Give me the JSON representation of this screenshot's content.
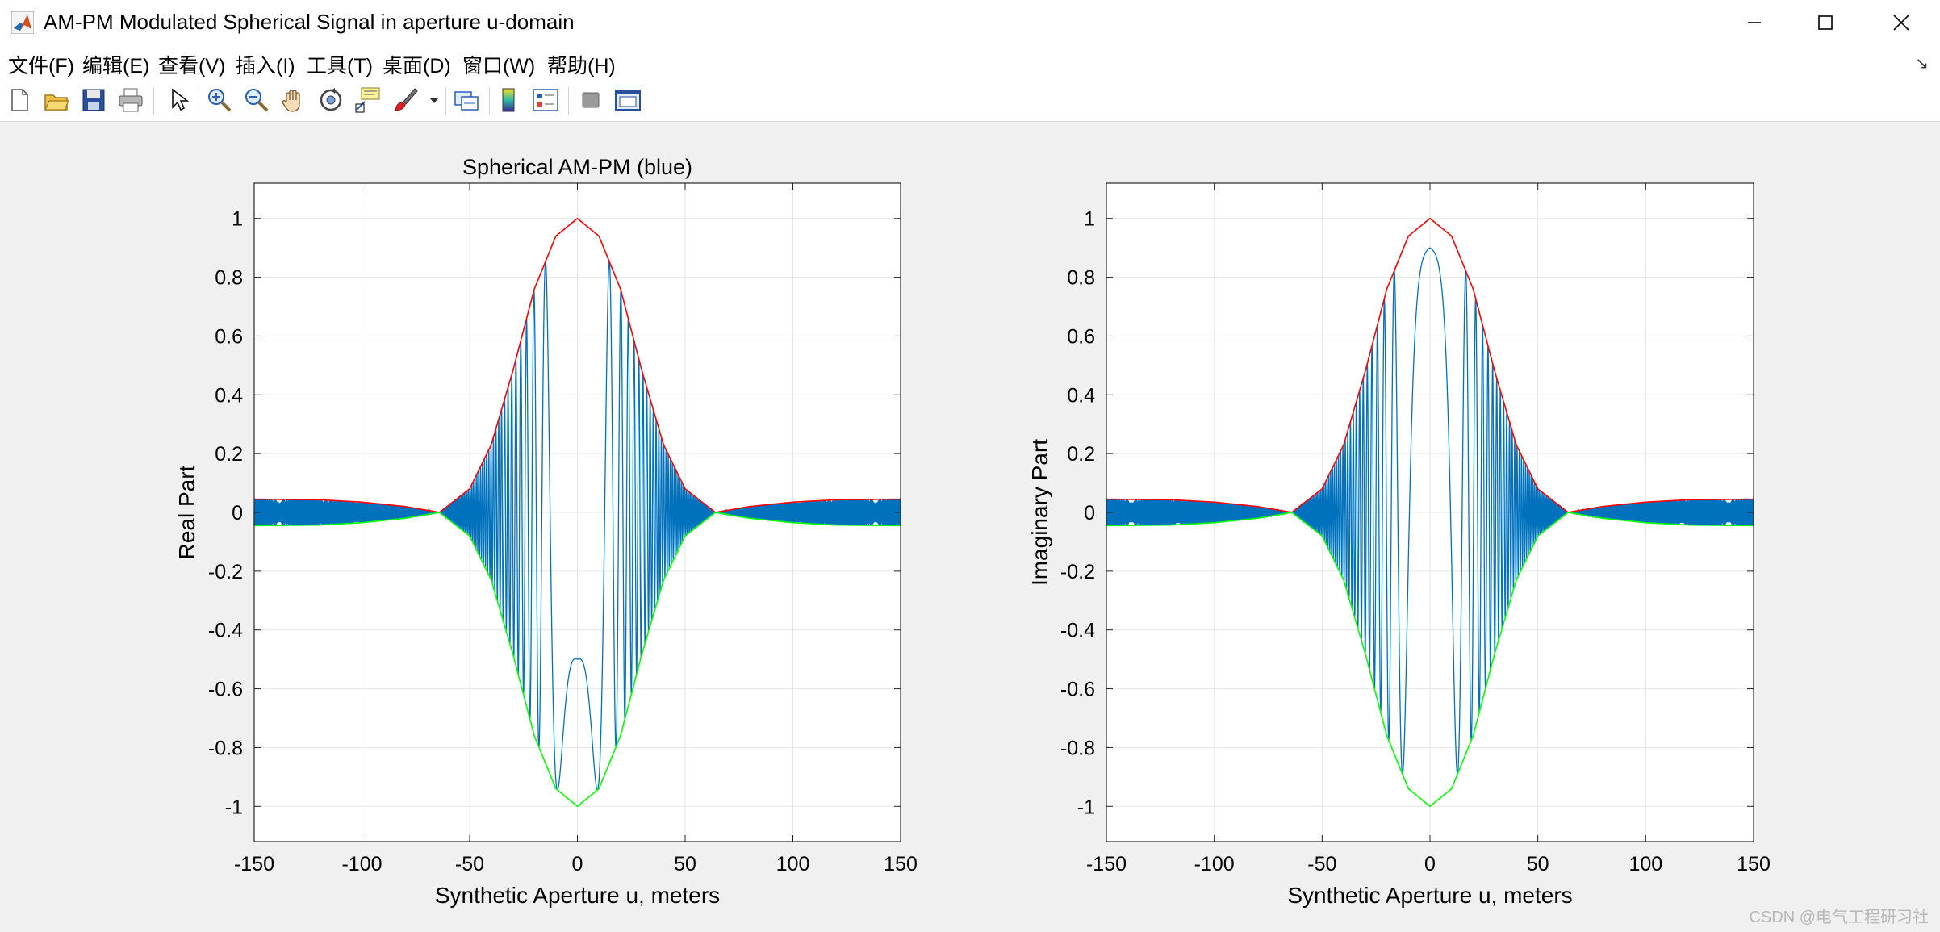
{
  "window": {
    "title": "AM-PM Modulated Spherical Signal in aperture u-domain",
    "app_icon": "matlab-icon",
    "controls": [
      "minimize-icon",
      "maximize-icon",
      "close-icon"
    ]
  },
  "menu": {
    "items": [
      "文件(F)",
      "编辑(E)",
      "查看(V)",
      "插入(I)",
      "工具(T)",
      "桌面(D)",
      "窗口(W)",
      "帮助(H)"
    ],
    "dock_arrow": "↘"
  },
  "toolbar": {
    "icons": [
      "new-figure-icon",
      "open-file-icon",
      "save-icon",
      "print-icon",
      "pointer-icon",
      "zoom-in-icon",
      "zoom-out-icon",
      "pan-hand-icon",
      "rotate-3d-icon",
      "data-cursor-icon",
      "brush-icon",
      "brush-dropdown-icon",
      "link-plot-icon",
      "colorbar-icon",
      "legend-icon",
      "hide-plot-tools-icon",
      "show-plot-tools-icon"
    ]
  },
  "colors": {
    "signal": "#0072bd",
    "upper_envelope": "#ff0000",
    "lower_envelope": "#00ff00",
    "grid": "#e6e6e6"
  },
  "watermark": "CSDN @电气工程研习社",
  "chart_data": [
    {
      "type": "line",
      "title": "Spherical AM-PM (blue)",
      "xlabel": "Synthetic Aperture u, meters",
      "ylabel": "Real Part",
      "xlim": [
        -150,
        150
      ],
      "ylim": [
        -1.12,
        1.12
      ],
      "xticks": [
        -150,
        -100,
        -50,
        0,
        50,
        100,
        150
      ],
      "yticks": [
        -1,
        -0.8,
        -0.6,
        -0.4,
        -0.2,
        0,
        0.2,
        0.4,
        0.6,
        0.8,
        1
      ],
      "grid": true,
      "series": [
        {
          "role": "signal",
          "color": "#0072bd",
          "value_at_zero": -0.5,
          "envelope_points": {
            "x": [
              -150,
              -120,
              -100,
              -80,
              -64,
              -50,
              -40,
              -30,
              -20,
              -10,
              0,
              10,
              20,
              30,
              40,
              50,
              64,
              80,
              100,
              120,
              150
            ],
            "y": [
              0.045,
              0.043,
              0.035,
              0.02,
              0,
              0.08,
              0.23,
              0.48,
              0.76,
              0.94,
              1,
              0.94,
              0.76,
              0.48,
              0.23,
              0.08,
              0,
              0.02,
              0.035,
              0.043,
              0.045
            ]
          }
        },
        {
          "role": "upper envelope",
          "color": "#ff0000",
          "x": [
            -150,
            -120,
            -100,
            -80,
            -64,
            -50,
            -40,
            -30,
            -20,
            -10,
            0,
            10,
            20,
            30,
            40,
            50,
            64,
            80,
            100,
            120,
            150
          ],
          "y": [
            0.045,
            0.043,
            0.035,
            0.02,
            0,
            0.08,
            0.23,
            0.48,
            0.76,
            0.94,
            1,
            0.94,
            0.76,
            0.48,
            0.23,
            0.08,
            0,
            0.02,
            0.035,
            0.043,
            0.045
          ]
        },
        {
          "role": "lower envelope",
          "color": "#00ff00",
          "x": [
            -150,
            -120,
            -100,
            -80,
            -64,
            -50,
            -40,
            -30,
            -20,
            -10,
            0,
            10,
            20,
            30,
            40,
            50,
            64,
            80,
            100,
            120,
            150
          ],
          "y": [
            -0.045,
            -0.043,
            -0.035,
            -0.02,
            0,
            -0.08,
            -0.23,
            -0.48,
            -0.76,
            -0.94,
            -1,
            -0.94,
            -0.76,
            -0.48,
            -0.23,
            -0.08,
            0,
            -0.02,
            -0.035,
            -0.043,
            -0.045
          ]
        }
      ]
    },
    {
      "type": "line",
      "title": "",
      "xlabel": "Synthetic Aperture u, meters",
      "ylabel": "Imaginary Part",
      "xlim": [
        -150,
        150
      ],
      "ylim": [
        -1.12,
        1.12
      ],
      "xticks": [
        -150,
        -100,
        -50,
        0,
        50,
        100,
        150
      ],
      "yticks": [
        -1,
        -0.8,
        -0.6,
        -0.4,
        -0.2,
        0,
        0.2,
        0.4,
        0.6,
        0.8,
        1
      ],
      "grid": true,
      "series": [
        {
          "role": "signal",
          "color": "#0072bd",
          "value_at_zero": 0.9,
          "envelope_points": {
            "x": [
              -150,
              -120,
              -100,
              -80,
              -64,
              -50,
              -40,
              -30,
              -20,
              -10,
              0,
              10,
              20,
              30,
              40,
              50,
              64,
              80,
              100,
              120,
              150
            ],
            "y": [
              0.045,
              0.043,
              0.035,
              0.02,
              0,
              0.08,
              0.23,
              0.48,
              0.76,
              0.94,
              1,
              0.94,
              0.76,
              0.48,
              0.23,
              0.08,
              0,
              0.02,
              0.035,
              0.043,
              0.045
            ]
          }
        },
        {
          "role": "upper envelope",
          "color": "#ff0000",
          "x": [
            -150,
            -120,
            -100,
            -80,
            -64,
            -50,
            -40,
            -30,
            -20,
            -10,
            0,
            10,
            20,
            30,
            40,
            50,
            64,
            80,
            100,
            120,
            150
          ],
          "y": [
            0.045,
            0.043,
            0.035,
            0.02,
            0,
            0.08,
            0.23,
            0.48,
            0.76,
            0.94,
            1,
            0.94,
            0.76,
            0.48,
            0.23,
            0.08,
            0,
            0.02,
            0.035,
            0.043,
            0.045
          ]
        },
        {
          "role": "lower envelope",
          "color": "#00ff00",
          "x": [
            -150,
            -120,
            -100,
            -80,
            -64,
            -50,
            -40,
            -30,
            -20,
            -10,
            0,
            10,
            20,
            30,
            40,
            50,
            64,
            80,
            100,
            120,
            150
          ],
          "y": [
            -0.045,
            -0.043,
            -0.035,
            -0.02,
            0,
            -0.08,
            -0.23,
            -0.48,
            -0.76,
            -0.94,
            -1,
            -0.94,
            -0.76,
            -0.48,
            -0.23,
            -0.08,
            0,
            -0.02,
            -0.035,
            -0.043,
            -0.045
          ]
        }
      ]
    }
  ]
}
